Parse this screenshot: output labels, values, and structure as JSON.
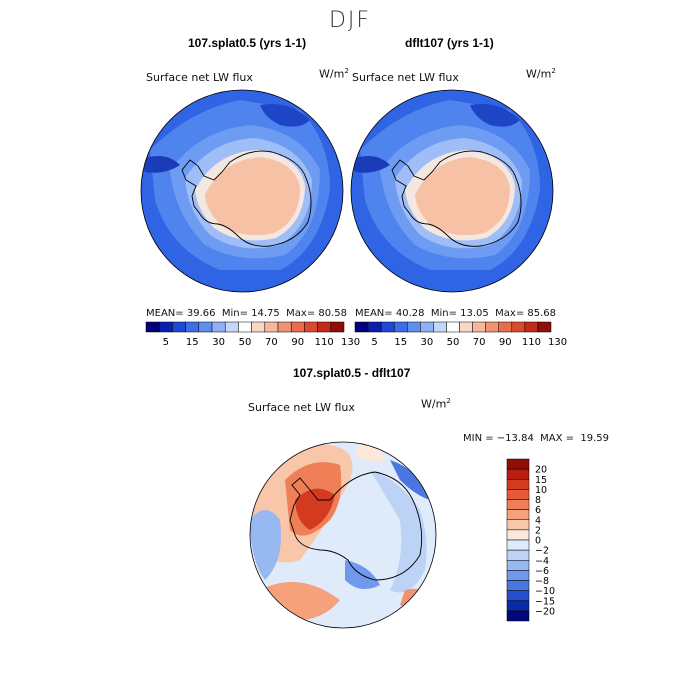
{
  "title": "DJF",
  "panels": [
    {
      "title": "107.splat0.5 (yrs 1-1)",
      "field": "Surface net LW flux",
      "units": "W/m",
      "units_exp": "2",
      "mean_label": "MEAN=",
      "mean": "39.66",
      "min_label": "Min=",
      "min": "14.75",
      "max_label": "Max=",
      "max": "80.58"
    },
    {
      "title": "dflt107 (yrs 1-1)",
      "field": "Surface net LW flux",
      "units": "W/m",
      "units_exp": "2",
      "mean_label": "MEAN=",
      "mean": "40.28",
      "min_label": "Min=",
      "min": "13.05",
      "max_label": "Max=",
      "max": "85.68"
    }
  ],
  "diff": {
    "title": "107.splat0.5 - dflt107",
    "field": "Surface net LW flux",
    "units": "W/m",
    "units_exp": "2",
    "minmax_text": "MIN = −13.84  MAX =  19.59"
  },
  "chart_data": [
    {
      "type": "heatmap",
      "title": "107.splat0.5 (yrs 1-1)",
      "projection": "south polar stereographic",
      "colorbar": {
        "levels": [
          5,
          15,
          30,
          50,
          70,
          90,
          110,
          130
        ],
        "labels": [
          "5",
          "15",
          "30",
          "50",
          "70",
          "90",
          "110",
          "130"
        ],
        "colors": [
          "#00007a",
          "#0a1fb0",
          "#1f48d8",
          "#3d6ee8",
          "#5f8ef0",
          "#8fb0f5",
          "#c4d6fa",
          "#ffffff",
          "#f9d8c6",
          "#f6b79c",
          "#f09373",
          "#e96c4e",
          "#db4a2e",
          "#c52a17",
          "#8f0e07"
        ]
      },
      "stats": {
        "mean": 39.66,
        "min": 14.75,
        "max": 80.58
      }
    },
    {
      "type": "heatmap",
      "title": "dflt107 (yrs 1-1)",
      "projection": "south polar stereographic",
      "colorbar": {
        "levels": [
          5,
          15,
          30,
          50,
          70,
          90,
          110,
          130
        ],
        "labels": [
          "5",
          "15",
          "30",
          "50",
          "70",
          "90",
          "110",
          "130"
        ]
      },
      "stats": {
        "mean": 40.28,
        "min": 13.05,
        "max": 85.68
      }
    },
    {
      "type": "heatmap",
      "title": "107.splat0.5 - dflt107",
      "projection": "south polar stereographic",
      "colorbar": {
        "levels": [
          20,
          15,
          10,
          8,
          6,
          4,
          2,
          0,
          -2,
          -4,
          -6,
          -8,
          -10,
          -15,
          -20
        ],
        "labels": [
          "20",
          "15",
          "10",
          "8",
          "6",
          "4",
          "2",
          "0",
          "−2",
          "−4",
          "−6",
          "−8",
          "−10",
          "−15",
          "−20"
        ],
        "colors": [
          "#8f0e07",
          "#b81d0f",
          "#d43a1f",
          "#e65a38",
          "#ef7f57",
          "#f5a27c",
          "#f8c6a9",
          "#fce9dc",
          "#dfeafb",
          "#bcd3f6",
          "#97b8f1",
          "#7098ec",
          "#4a76e2",
          "#2650cf",
          "#0a2aa8",
          "#00087a"
        ]
      },
      "stats": {
        "min": -13.84,
        "max": 19.59
      }
    }
  ]
}
